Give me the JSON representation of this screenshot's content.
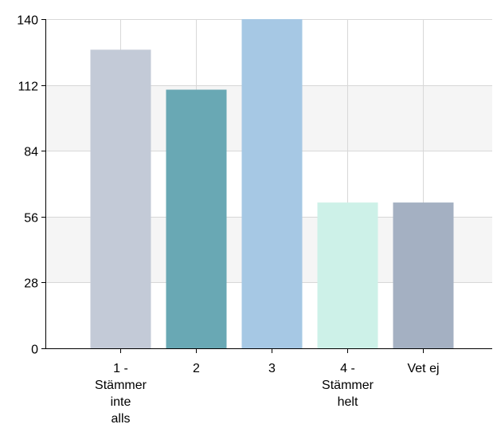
{
  "chart_data": {
    "type": "bar",
    "title": "",
    "xlabel": "",
    "ylabel": "",
    "ylim": [
      0,
      140
    ],
    "yticks": [
      0,
      28,
      56,
      84,
      112,
      140
    ],
    "categories": [
      [
        "1 -",
        "Stämmer",
        "inte",
        "alls"
      ],
      [
        "2"
      ],
      [
        "3"
      ],
      [
        "4 -",
        "Stämmer",
        "helt"
      ],
      [
        "Vet ej"
      ]
    ],
    "values": [
      127,
      110,
      140,
      62,
      62
    ],
    "colors": [
      "#c3cad7",
      "#69a8b4",
      "#a6c8e4",
      "#cdf1e8",
      "#a4b0c2"
    ],
    "grid": true,
    "band_colors": [
      "#ffffff",
      "#f5f5f5"
    ],
    "grid_color": "#d8d8d8",
    "axis_color": "#000000"
  }
}
